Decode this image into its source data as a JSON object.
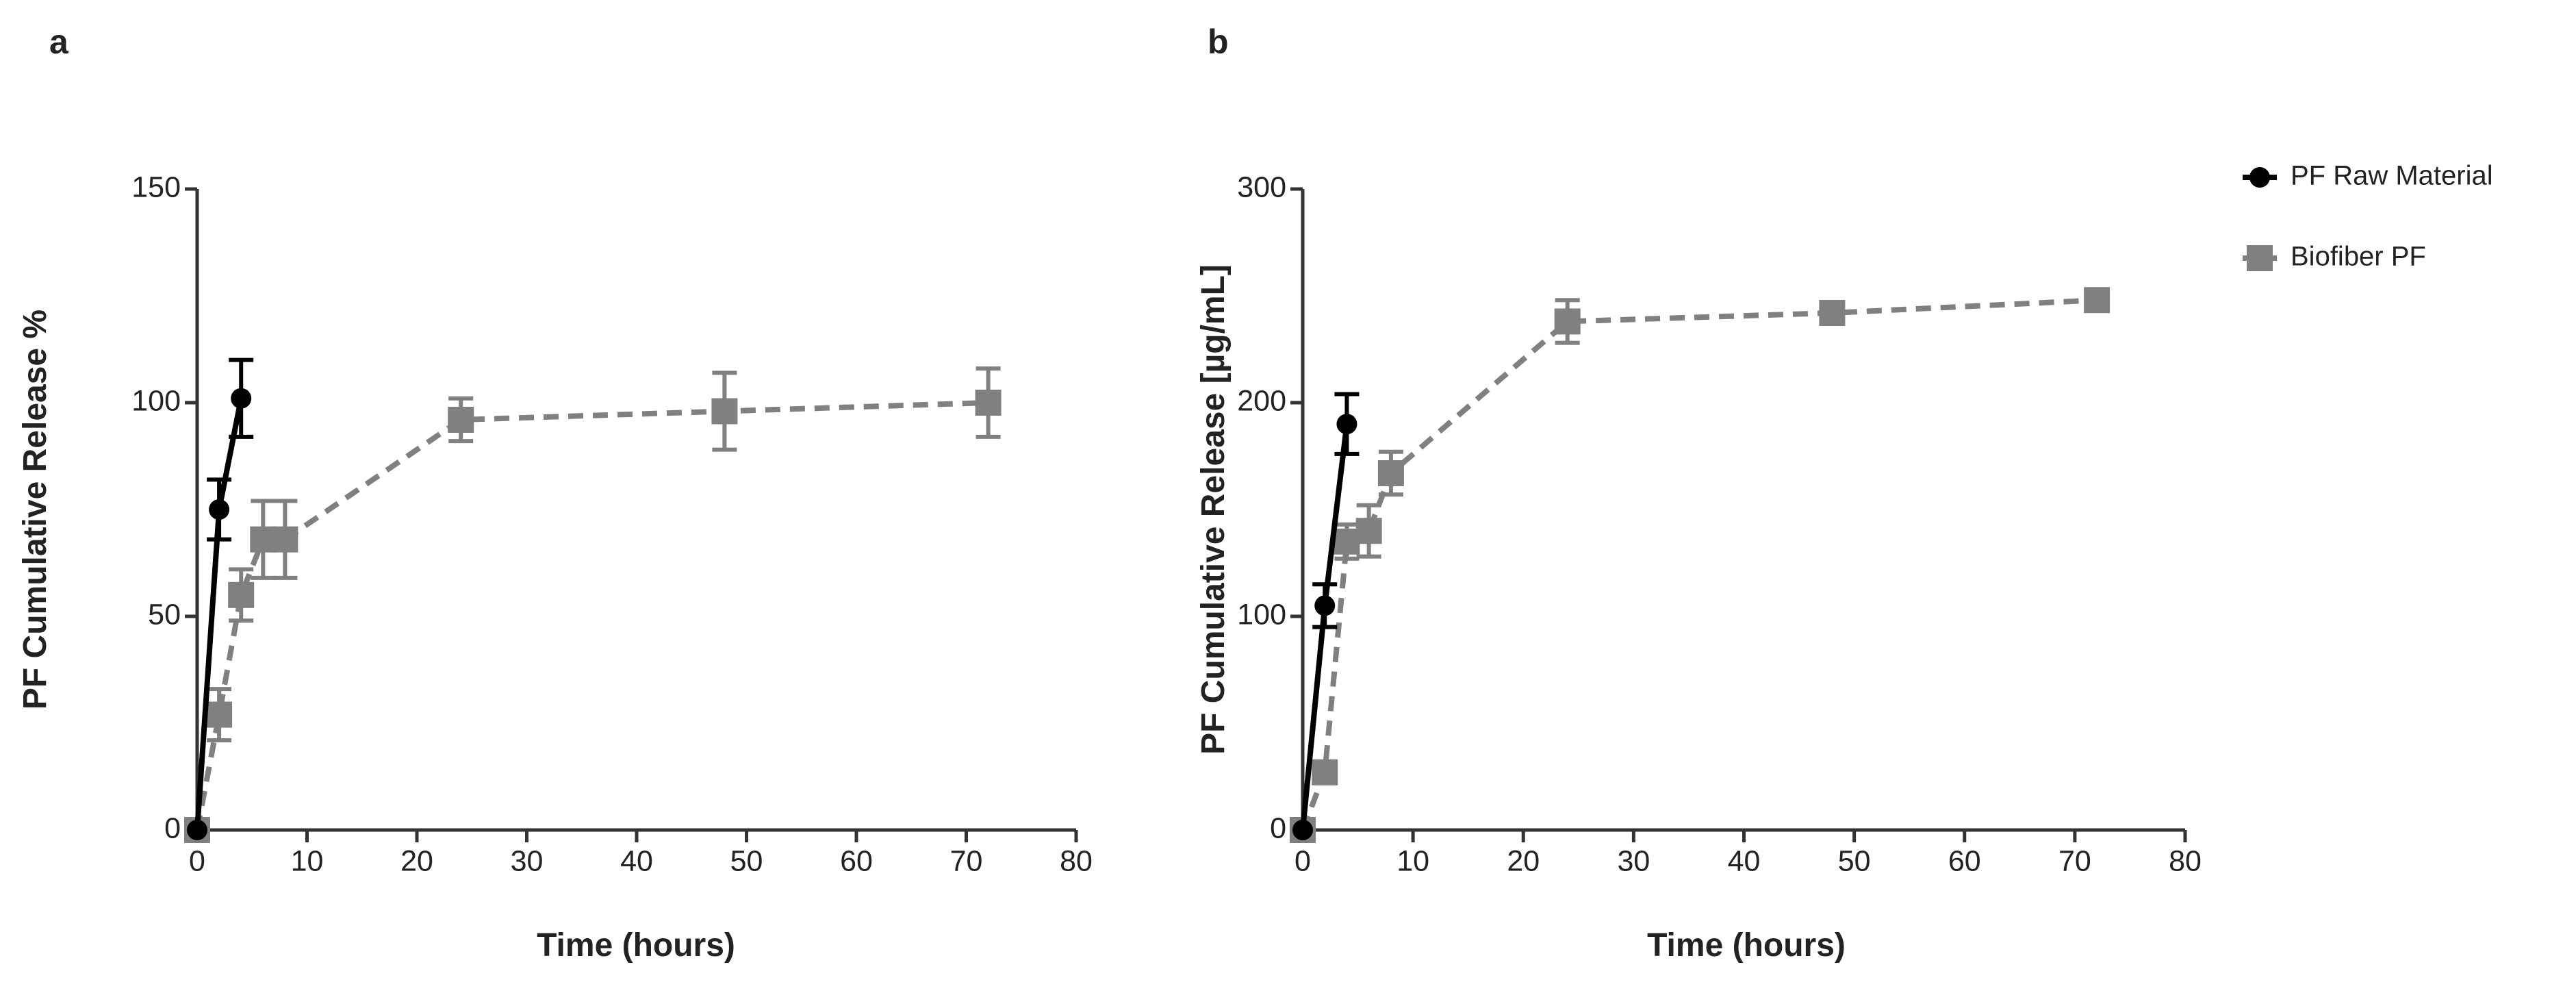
{
  "chart_data": [
    {
      "type": "line",
      "panel_label": "a",
      "x_label": "Time (hours)",
      "y_label": "PF Cumulative Release %",
      "xlim": [
        0,
        80
      ],
      "xticks": [
        0,
        10,
        20,
        30,
        40,
        50,
        60,
        70,
        80
      ],
      "ylim": [
        0,
        150
      ],
      "yticks": [
        0,
        50,
        100,
        150
      ],
      "series": [
        {
          "color": "#000000",
          "linestyle": "solid",
          "marker": "circle",
          "x": [
            0,
            2,
            4
          ],
          "values": [
            0,
            75,
            101
          ],
          "errors": [
            0,
            7,
            9
          ]
        },
        {
          "color": "#808080",
          "linestyle": "dashed",
          "marker": "square",
          "x": [
            0,
            2,
            4,
            6,
            8,
            24,
            48,
            72
          ],
          "values": [
            0,
            27,
            55,
            68,
            68,
            96,
            98,
            100
          ],
          "errors": [
            0,
            6,
            6,
            9,
            9,
            5,
            9,
            8
          ]
        }
      ]
    },
    {
      "type": "line",
      "panel_label": "b",
      "x_label": "Time (hours)",
      "y_label": "PF Cumulative Release [µg/mL]",
      "xlim": [
        0,
        80
      ],
      "xticks": [
        0,
        10,
        20,
        30,
        40,
        50,
        60,
        70,
        80
      ],
      "ylim": [
        0,
        300
      ],
      "yticks": [
        0,
        100,
        200,
        300
      ],
      "legend": "outside-right",
      "series": [
        {
          "name": "PF Raw Material",
          "color": "#000000",
          "linestyle": "solid",
          "marker": "circle",
          "x": [
            0,
            2,
            4
          ],
          "values": [
            0,
            105,
            190
          ],
          "errors": [
            0,
            10,
            14
          ]
        },
        {
          "name": "Biofiber PF",
          "color": "#808080",
          "linestyle": "dashed",
          "marker": "square",
          "x": [
            0,
            2,
            4,
            6,
            8,
            24,
            48,
            72
          ],
          "values": [
            0,
            27,
            135,
            140,
            167,
            238,
            242,
            248
          ],
          "errors": [
            0,
            5,
            8,
            12,
            10,
            10,
            4,
            4
          ]
        }
      ]
    }
  ]
}
